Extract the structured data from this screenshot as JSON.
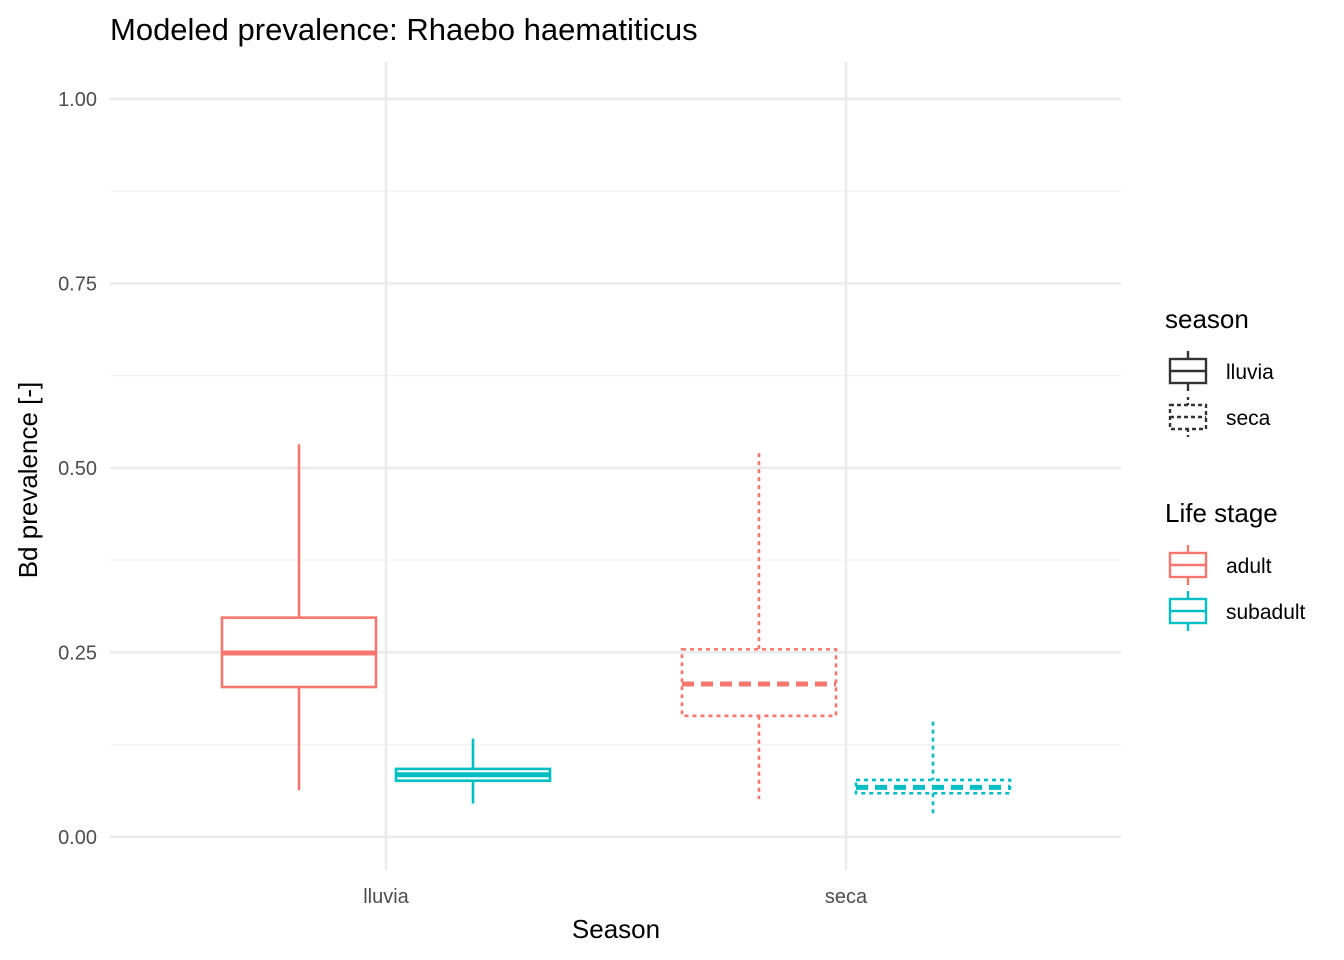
{
  "chart_data": {
    "type": "boxplot",
    "title": "Modeled prevalence: Rhaebo haematiticus",
    "xlabel": "Season",
    "ylabel": "Bd prevalence [-]",
    "categories": [
      "lluvia",
      "seca"
    ],
    "y_ticks": [
      "0.00",
      "0.25",
      "0.50",
      "0.75",
      "1.00"
    ],
    "ylim": [
      -0.045,
      1.05
    ],
    "grid": true,
    "legend_position": "right",
    "legends": [
      {
        "title": "season",
        "entries": [
          {
            "label": "lluvia",
            "linetype": "solid"
          },
          {
            "label": "seca",
            "linetype": "dotted"
          }
        ]
      },
      {
        "title": "Life stage",
        "entries": [
          {
            "label": "adult",
            "color": "#F8766D"
          },
          {
            "label": "subadult",
            "color": "#00BFC4"
          }
        ]
      }
    ],
    "series": [
      {
        "stage": "adult",
        "color": "#F8766D",
        "boxes": [
          {
            "category": "lluvia",
            "season": "lluvia",
            "whisker_low": 0.063,
            "q1": 0.203,
            "median": 0.249,
            "q3": 0.297,
            "whisker_high": 0.532
          },
          {
            "category": "seca",
            "season": "seca",
            "whisker_low": 0.051,
            "q1": 0.164,
            "median": 0.207,
            "q3": 0.254,
            "whisker_high": 0.52
          }
        ]
      },
      {
        "stage": "subadult",
        "color": "#00BFC4",
        "boxes": [
          {
            "category": "lluvia",
            "season": "lluvia",
            "whisker_low": 0.045,
            "q1": 0.076,
            "median": 0.084,
            "q3": 0.092,
            "whisker_high": 0.133
          },
          {
            "category": "seca",
            "season": "seca",
            "whisker_low": 0.027,
            "q1": 0.059,
            "median": 0.067,
            "q3": 0.077,
            "whisker_high": 0.156
          }
        ]
      }
    ]
  }
}
